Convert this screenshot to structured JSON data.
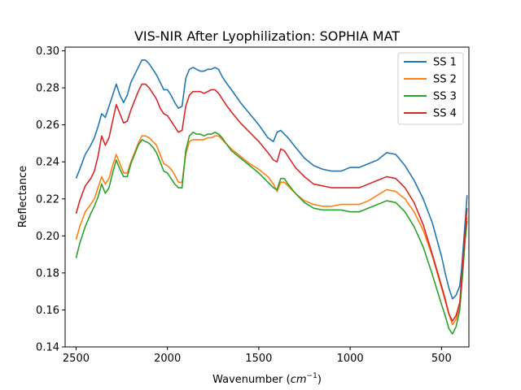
{
  "chart_data": {
    "type": "line",
    "title": "VIS-NIR After Lyophilization: SOPHIA MAT",
    "xlabel": "Wavenumber (",
    "xlabel_unit": "cm",
    "xlabel_exp": "−1",
    "xlabel_close": ")",
    "ylabel": "Reflectance",
    "xlim": [
      2560,
      350
    ],
    "ylim": [
      0.14,
      0.302
    ],
    "x_inverted": true,
    "x_ticks": [
      2500,
      2000,
      1500,
      1000,
      500
    ],
    "x_tick_labels": [
      "2500",
      "2000",
      "1500",
      "1000",
      "500"
    ],
    "y_ticks": [
      0.14,
      0.16,
      0.18,
      0.2,
      0.22,
      0.24,
      0.26,
      0.28,
      0.3
    ],
    "y_tick_labels": [
      "0.14",
      "0.16",
      "0.18",
      "0.20",
      "0.22",
      "0.24",
      "0.26",
      "0.28",
      "0.30"
    ],
    "grid": false,
    "legend_position": "top-right",
    "series": [
      {
        "name": "SS 1",
        "color": "#1f77b4",
        "x": [
          2500,
          2480,
          2450,
          2420,
          2400,
          2380,
          2360,
          2340,
          2320,
          2300,
          2280,
          2260,
          2240,
          2220,
          2200,
          2180,
          2160,
          2140,
          2120,
          2100,
          2080,
          2060,
          2040,
          2020,
          2000,
          1980,
          1960,
          1940,
          1920,
          1900,
          1880,
          1860,
          1840,
          1820,
          1800,
          1780,
          1760,
          1740,
          1720,
          1700,
          1680,
          1650,
          1600,
          1550,
          1500,
          1450,
          1420,
          1400,
          1380,
          1360,
          1340,
          1300,
          1250,
          1200,
          1150,
          1100,
          1050,
          1000,
          950,
          900,
          850,
          800,
          750,
          700,
          650,
          600,
          550,
          500,
          480,
          460,
          440,
          420,
          400,
          390,
          380,
          370,
          360
        ],
        "y": [
          0.231,
          0.236,
          0.244,
          0.249,
          0.253,
          0.259,
          0.266,
          0.264,
          0.27,
          0.276,
          0.282,
          0.276,
          0.272,
          0.276,
          0.283,
          0.287,
          0.291,
          0.295,
          0.295,
          0.293,
          0.29,
          0.287,
          0.283,
          0.279,
          0.279,
          0.276,
          0.272,
          0.269,
          0.27,
          0.285,
          0.29,
          0.291,
          0.29,
          0.289,
          0.289,
          0.29,
          0.29,
          0.291,
          0.29,
          0.286,
          0.283,
          0.279,
          0.272,
          0.266,
          0.26,
          0.253,
          0.251,
          0.256,
          0.257,
          0.255,
          0.253,
          0.248,
          0.242,
          0.238,
          0.236,
          0.235,
          0.235,
          0.237,
          0.237,
          0.239,
          0.241,
          0.245,
          0.244,
          0.238,
          0.23,
          0.22,
          0.207,
          0.189,
          0.18,
          0.172,
          0.166,
          0.168,
          0.173,
          0.182,
          0.195,
          0.208,
          0.222
        ]
      },
      {
        "name": "SS 2",
        "color": "#ff7f0e",
        "x": [
          2500,
          2480,
          2450,
          2420,
          2400,
          2380,
          2360,
          2340,
          2320,
          2300,
          2280,
          2260,
          2240,
          2220,
          2200,
          2180,
          2160,
          2140,
          2120,
          2100,
          2080,
          2060,
          2040,
          2020,
          2000,
          1980,
          1960,
          1940,
          1920,
          1900,
          1880,
          1860,
          1840,
          1820,
          1800,
          1780,
          1760,
          1740,
          1720,
          1700,
          1680,
          1650,
          1600,
          1550,
          1500,
          1450,
          1420,
          1400,
          1380,
          1360,
          1340,
          1300,
          1250,
          1200,
          1150,
          1100,
          1050,
          1000,
          950,
          900,
          850,
          800,
          750,
          700,
          650,
          600,
          550,
          500,
          480,
          460,
          440,
          420,
          400,
          390,
          380,
          370,
          360
        ],
        "y": [
          0.198,
          0.205,
          0.213,
          0.217,
          0.22,
          0.226,
          0.232,
          0.228,
          0.231,
          0.238,
          0.244,
          0.239,
          0.234,
          0.234,
          0.24,
          0.245,
          0.25,
          0.254,
          0.254,
          0.253,
          0.251,
          0.249,
          0.244,
          0.239,
          0.238,
          0.236,
          0.233,
          0.229,
          0.229,
          0.244,
          0.251,
          0.252,
          0.252,
          0.252,
          0.252,
          0.253,
          0.253,
          0.254,
          0.254,
          0.252,
          0.25,
          0.247,
          0.243,
          0.239,
          0.236,
          0.232,
          0.228,
          0.224,
          0.229,
          0.229,
          0.227,
          0.223,
          0.219,
          0.217,
          0.216,
          0.216,
          0.217,
          0.217,
          0.217,
          0.219,
          0.222,
          0.225,
          0.224,
          0.22,
          0.213,
          0.203,
          0.189,
          0.172,
          0.165,
          0.158,
          0.152,
          0.155,
          0.162,
          0.175,
          0.188,
          0.2,
          0.21
        ]
      },
      {
        "name": "SS 3",
        "color": "#2ca02c",
        "x": [
          2500,
          2480,
          2450,
          2420,
          2400,
          2380,
          2360,
          2340,
          2320,
          2300,
          2280,
          2260,
          2240,
          2220,
          2200,
          2180,
          2160,
          2140,
          2120,
          2100,
          2080,
          2060,
          2040,
          2020,
          2000,
          1980,
          1960,
          1940,
          1920,
          1900,
          1880,
          1860,
          1840,
          1820,
          1800,
          1780,
          1760,
          1740,
          1720,
          1700,
          1680,
          1650,
          1600,
          1550,
          1500,
          1450,
          1420,
          1400,
          1380,
          1360,
          1340,
          1300,
          1250,
          1200,
          1150,
          1100,
          1050,
          1000,
          950,
          900,
          850,
          800,
          750,
          700,
          650,
          600,
          550,
          500,
          480,
          460,
          440,
          420,
          400,
          390,
          380,
          370,
          360
        ],
        "y": [
          0.188,
          0.196,
          0.205,
          0.212,
          0.216,
          0.221,
          0.228,
          0.223,
          0.226,
          0.234,
          0.241,
          0.236,
          0.232,
          0.232,
          0.239,
          0.244,
          0.249,
          0.252,
          0.251,
          0.25,
          0.248,
          0.245,
          0.24,
          0.235,
          0.234,
          0.231,
          0.228,
          0.226,
          0.226,
          0.246,
          0.254,
          0.256,
          0.255,
          0.255,
          0.254,
          0.255,
          0.255,
          0.256,
          0.255,
          0.253,
          0.25,
          0.246,
          0.242,
          0.238,
          0.234,
          0.229,
          0.226,
          0.225,
          0.231,
          0.231,
          0.228,
          0.223,
          0.218,
          0.215,
          0.214,
          0.214,
          0.214,
          0.213,
          0.213,
          0.215,
          0.217,
          0.219,
          0.218,
          0.213,
          0.205,
          0.194,
          0.179,
          0.163,
          0.157,
          0.15,
          0.147,
          0.151,
          0.16,
          0.172,
          0.185,
          0.198,
          0.208
        ]
      },
      {
        "name": "SS 4",
        "color": "#d62728",
        "x": [
          2500,
          2480,
          2450,
          2420,
          2400,
          2380,
          2360,
          2340,
          2320,
          2300,
          2280,
          2260,
          2240,
          2220,
          2200,
          2180,
          2160,
          2140,
          2120,
          2100,
          2080,
          2060,
          2040,
          2020,
          2000,
          1980,
          1960,
          1940,
          1920,
          1900,
          1880,
          1860,
          1840,
          1820,
          1800,
          1780,
          1760,
          1740,
          1720,
          1700,
          1680,
          1650,
          1600,
          1550,
          1500,
          1450,
          1420,
          1400,
          1380,
          1360,
          1340,
          1300,
          1250,
          1200,
          1150,
          1100,
          1050,
          1000,
          950,
          900,
          850,
          800,
          750,
          700,
          650,
          600,
          550,
          500,
          480,
          460,
          440,
          420,
          400,
          390,
          380,
          370,
          360
        ],
        "y": [
          0.212,
          0.219,
          0.227,
          0.231,
          0.235,
          0.243,
          0.254,
          0.249,
          0.253,
          0.262,
          0.271,
          0.266,
          0.261,
          0.262,
          0.268,
          0.273,
          0.278,
          0.282,
          0.282,
          0.28,
          0.277,
          0.274,
          0.269,
          0.266,
          0.265,
          0.262,
          0.259,
          0.256,
          0.257,
          0.27,
          0.276,
          0.278,
          0.278,
          0.278,
          0.277,
          0.278,
          0.279,
          0.279,
          0.277,
          0.274,
          0.271,
          0.267,
          0.261,
          0.256,
          0.251,
          0.245,
          0.241,
          0.24,
          0.247,
          0.246,
          0.243,
          0.237,
          0.232,
          0.228,
          0.227,
          0.226,
          0.226,
          0.226,
          0.226,
          0.228,
          0.23,
          0.232,
          0.231,
          0.226,
          0.218,
          0.206,
          0.19,
          0.173,
          0.166,
          0.158,
          0.154,
          0.157,
          0.164,
          0.177,
          0.19,
          0.203,
          0.215
        ]
      }
    ]
  }
}
